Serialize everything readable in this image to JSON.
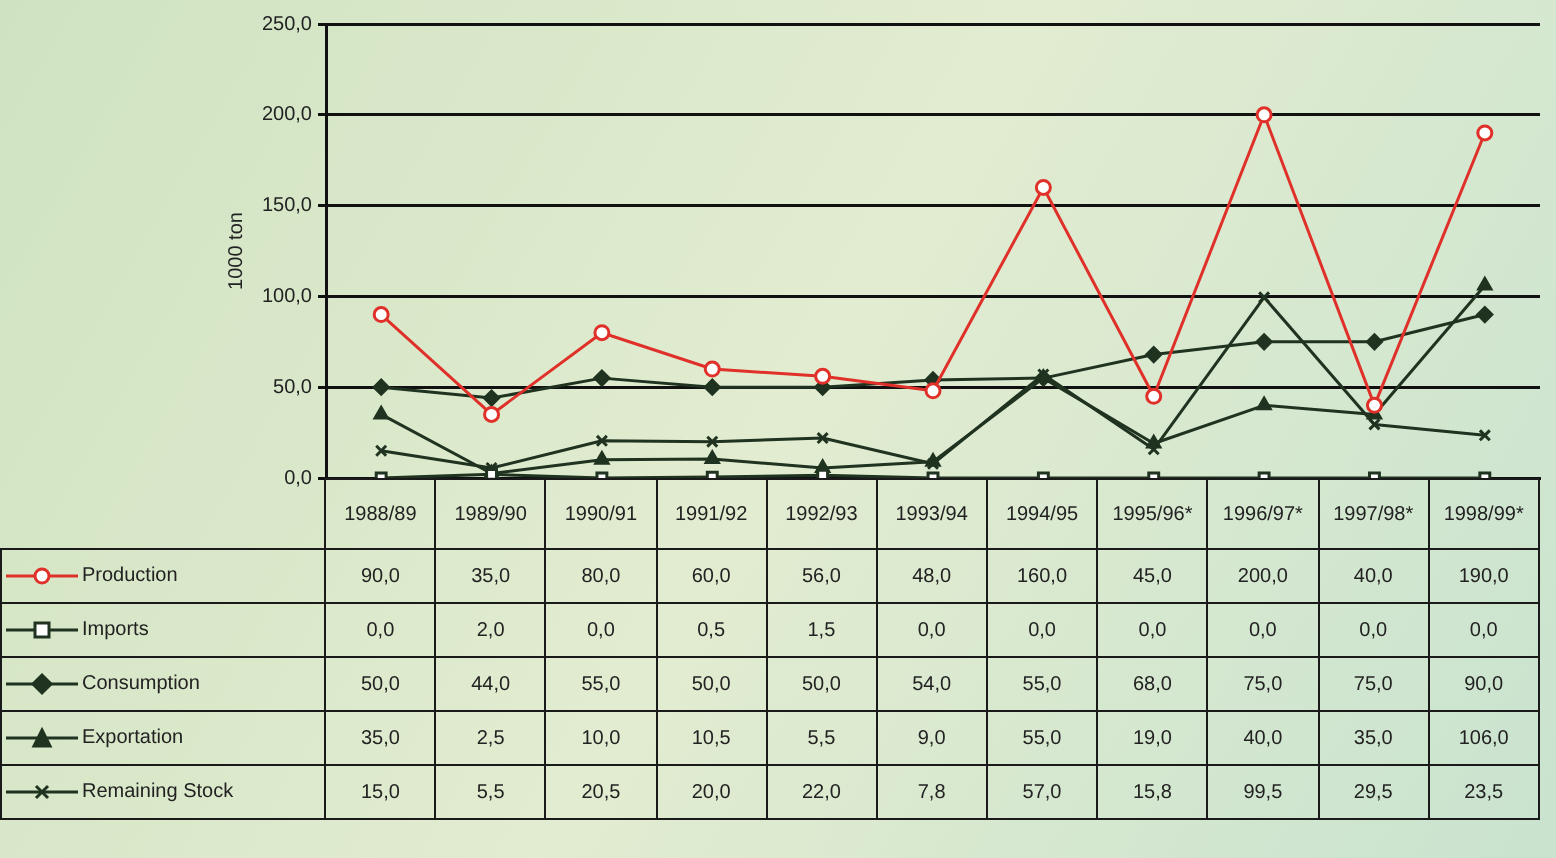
{
  "chart_data": {
    "type": "line",
    "ylabel": "1000 ton",
    "categories": [
      "1988/89",
      "1989/90",
      "1990/91",
      "1991/92",
      "1992/93",
      "1993/94",
      "1994/95",
      "1995/96*",
      "1996/97*",
      "1997/98*",
      "1998/99*"
    ],
    "ylim": [
      0,
      250
    ],
    "yticks": [
      {
        "value": 0,
        "label": "0,0"
      },
      {
        "value": 50,
        "label": "50,0"
      },
      {
        "value": 100,
        "label": "100,0"
      },
      {
        "value": 150,
        "label": "150,0"
      },
      {
        "value": 200,
        "label": "200,0"
      },
      {
        "value": 250,
        "label": "250,0"
      }
    ],
    "grid": "y",
    "legend": "bottom left",
    "series": [
      {
        "name": "Production",
        "color": "#e0302a",
        "marker": "circle",
        "values": [
          90,
          35,
          80,
          60,
          56,
          48,
          160,
          45,
          200,
          40,
          190
        ],
        "value_labels": [
          "90,0",
          "35,0",
          "80,0",
          "60,0",
          "56,0",
          "48,0",
          "160,0",
          "45,0",
          "200,0",
          "40,0",
          "190,0"
        ]
      },
      {
        "name": "Imports",
        "color": "#1f3320",
        "marker": "square",
        "values": [
          0,
          2,
          0,
          0.5,
          1.5,
          0,
          0,
          0,
          0,
          0,
          0
        ],
        "value_labels": [
          "0,0",
          "2,0",
          "0,0",
          "0,5",
          "1,5",
          "0,0",
          "0,0",
          "0,0",
          "0,0",
          "0,0",
          "0,0"
        ]
      },
      {
        "name": "Consumption",
        "color": "#1f3320",
        "marker": "diamond",
        "values": [
          50,
          44,
          55,
          50,
          50,
          54,
          55,
          68,
          75,
          75,
          90
        ],
        "value_labels": [
          "50,0",
          "44,0",
          "55,0",
          "50,0",
          "50,0",
          "54,0",
          "55,0",
          "68,0",
          "75,0",
          "75,0",
          "90,0"
        ]
      },
      {
        "name": "Exportation",
        "color": "#1f3320",
        "marker": "triangle",
        "values": [
          35,
          2.5,
          10,
          10.5,
          5.5,
          9,
          55,
          19,
          40,
          35,
          106
        ],
        "value_labels": [
          "35,0",
          "2,5",
          "10,0",
          "10,5",
          "5,5",
          "9,0",
          "55,0",
          "19,0",
          "40,0",
          "35,0",
          "106,0"
        ]
      },
      {
        "name": "Remaining Stock",
        "color": "#1f3320",
        "marker": "cross",
        "values": [
          15,
          5.5,
          20.5,
          20,
          22,
          7.8,
          57,
          15.8,
          99.5,
          29.5,
          23.5
        ],
        "value_labels": [
          "15,0",
          "5,5",
          "20,5",
          "20,0",
          "22,0",
          "7,8",
          "57,0",
          "15,8",
          "99,5",
          "29,5",
          "23,5"
        ]
      }
    ]
  }
}
